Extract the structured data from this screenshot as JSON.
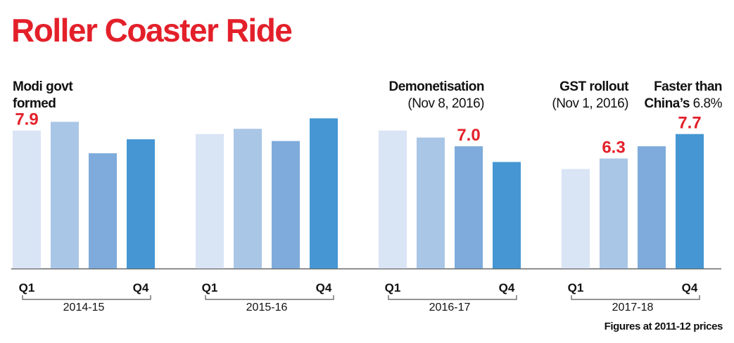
{
  "chart_data": {
    "type": "bar",
    "title": "Roller Coaster Ride",
    "xlabel": "",
    "ylabel": "",
    "groups": [
      {
        "name": "2014-15",
        "quarters": [
          "Q1",
          "",
          "",
          "Q4"
        ],
        "values": [
          7.9,
          8.4,
          6.6,
          7.4
        ]
      },
      {
        "name": "2015-16",
        "quarters": [
          "Q1",
          "",
          "",
          "Q4"
        ],
        "values": [
          7.7,
          8.0,
          7.3,
          8.6
        ]
      },
      {
        "name": "2016-17",
        "quarters": [
          "Q1",
          "",
          "",
          "Q4"
        ],
        "values": [
          7.9,
          7.5,
          7.0,
          6.1
        ]
      },
      {
        "name": "2017-18",
        "quarters": [
          "Q1",
          "",
          "",
          "Q4"
        ],
        "values": [
          5.7,
          6.3,
          7.0,
          7.7
        ]
      }
    ],
    "data_labels": [
      {
        "group": 0,
        "bar": 0,
        "text": "7.9"
      },
      {
        "group": 2,
        "bar": 2,
        "text": "7.0"
      },
      {
        "group": 3,
        "bar": 1,
        "text": "6.3"
      },
      {
        "group": 3,
        "bar": 3,
        "text": "7.7"
      }
    ],
    "bar_colors": [
      "#d9e4f5",
      "#aac6e6",
      "#7eabdb",
      "#4596d3"
    ],
    "label_color": "#e3202a",
    "ylim": [
      0,
      9.5
    ],
    "grid": false
  },
  "annotations": {
    "modi": {
      "line1": "Modi govt",
      "line2": "formed"
    },
    "demo": {
      "line1": "Demonetisation",
      "line2": "(Nov 8, 2016)"
    },
    "gst": {
      "line1": "GST rollout",
      "line2": "(Nov 1, 2016)"
    },
    "china": {
      "line1": "Faster than",
      "line2_bold": "China’s",
      "line2_rest": " 6.8%"
    }
  },
  "footnote": "Figures at 2011-12 prices"
}
